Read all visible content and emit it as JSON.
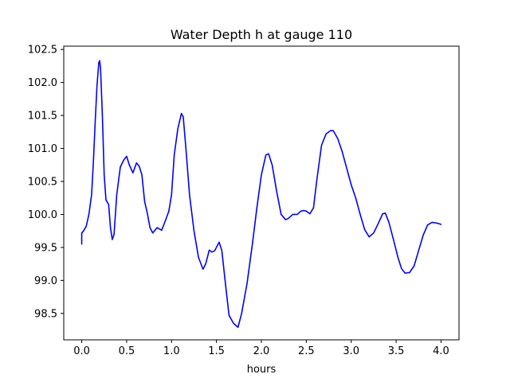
{
  "chart_data": {
    "type": "line",
    "title": "Water Depth h at gauge 110",
    "xlabel": "hours",
    "ylabel": "",
    "xlim": [
      -0.2,
      4.2
    ],
    "ylim": [
      98.1,
      102.55
    ],
    "xticks": [
      0.0,
      0.5,
      1.0,
      1.5,
      2.0,
      2.5,
      3.0,
      3.5,
      4.0
    ],
    "xtick_labels": [
      "0.0",
      "0.5",
      "1.0",
      "1.5",
      "2.0",
      "2.5",
      "3.0",
      "3.5",
      "4.0"
    ],
    "yticks": [
      98.5,
      99.0,
      99.5,
      100.0,
      100.5,
      101.0,
      101.5,
      102.0,
      102.5
    ],
    "ytick_labels": [
      "98.5",
      "99.0",
      "99.5",
      "100.0",
      "100.5",
      "101.0",
      "101.5",
      "102.0",
      "102.5"
    ],
    "grid": false,
    "series": [
      {
        "color": "#0000ff",
        "points": [
          [
            0.0,
            99.55
          ],
          [
            0.0,
            99.72
          ],
          [
            0.02,
            99.75
          ],
          [
            0.05,
            99.82
          ],
          [
            0.08,
            100.0
          ],
          [
            0.11,
            100.3
          ],
          [
            0.13,
            100.8
          ],
          [
            0.15,
            101.4
          ],
          [
            0.17,
            101.95
          ],
          [
            0.19,
            102.3
          ],
          [
            0.2,
            102.33
          ],
          [
            0.21,
            102.2
          ],
          [
            0.23,
            101.5
          ],
          [
            0.25,
            100.6
          ],
          [
            0.27,
            100.22
          ],
          [
            0.3,
            100.15
          ],
          [
            0.32,
            99.8
          ],
          [
            0.34,
            99.62
          ],
          [
            0.36,
            99.7
          ],
          [
            0.39,
            100.3
          ],
          [
            0.43,
            100.72
          ],
          [
            0.47,
            100.83
          ],
          [
            0.5,
            100.88
          ],
          [
            0.53,
            100.75
          ],
          [
            0.57,
            100.63
          ],
          [
            0.61,
            100.78
          ],
          [
            0.64,
            100.73
          ],
          [
            0.67,
            100.6
          ],
          [
            0.7,
            100.2
          ],
          [
            0.73,
            100.02
          ],
          [
            0.76,
            99.8
          ],
          [
            0.79,
            99.72
          ],
          [
            0.84,
            99.8
          ],
          [
            0.89,
            99.76
          ],
          [
            0.93,
            99.9
          ],
          [
            0.97,
            100.05
          ],
          [
            1.0,
            100.3
          ],
          [
            1.03,
            100.9
          ],
          [
            1.07,
            101.3
          ],
          [
            1.11,
            101.53
          ],
          [
            1.13,
            101.48
          ],
          [
            1.16,
            101.0
          ],
          [
            1.2,
            100.3
          ],
          [
            1.25,
            99.75
          ],
          [
            1.3,
            99.35
          ],
          [
            1.35,
            99.17
          ],
          [
            1.38,
            99.25
          ],
          [
            1.42,
            99.46
          ],
          [
            1.45,
            99.43
          ],
          [
            1.48,
            99.45
          ],
          [
            1.53,
            99.58
          ],
          [
            1.56,
            99.45
          ],
          [
            1.6,
            98.95
          ],
          [
            1.64,
            98.47
          ],
          [
            1.69,
            98.35
          ],
          [
            1.74,
            98.29
          ],
          [
            1.78,
            98.5
          ],
          [
            1.84,
            98.95
          ],
          [
            1.9,
            99.55
          ],
          [
            1.95,
            100.1
          ],
          [
            2.0,
            100.6
          ],
          [
            2.05,
            100.9
          ],
          [
            2.08,
            100.92
          ],
          [
            2.12,
            100.75
          ],
          [
            2.17,
            100.35
          ],
          [
            2.22,
            100.0
          ],
          [
            2.27,
            99.92
          ],
          [
            2.3,
            99.94
          ],
          [
            2.35,
            100.0
          ],
          [
            2.4,
            100.0
          ],
          [
            2.44,
            100.05
          ],
          [
            2.47,
            100.06
          ],
          [
            2.5,
            100.05
          ],
          [
            2.54,
            100.01
          ],
          [
            2.58,
            100.1
          ],
          [
            2.62,
            100.55
          ],
          [
            2.67,
            101.05
          ],
          [
            2.72,
            101.22
          ],
          [
            2.77,
            101.27
          ],
          [
            2.8,
            101.27
          ],
          [
            2.85,
            101.15
          ],
          [
            2.9,
            100.95
          ],
          [
            2.95,
            100.7
          ],
          [
            3.0,
            100.45
          ],
          [
            3.05,
            100.25
          ],
          [
            3.1,
            100.0
          ],
          [
            3.15,
            99.77
          ],
          [
            3.2,
            99.66
          ],
          [
            3.25,
            99.72
          ],
          [
            3.3,
            99.86
          ],
          [
            3.35,
            100.01
          ],
          [
            3.38,
            100.02
          ],
          [
            3.42,
            99.88
          ],
          [
            3.47,
            99.62
          ],
          [
            3.52,
            99.35
          ],
          [
            3.56,
            99.18
          ],
          [
            3.6,
            99.11
          ],
          [
            3.65,
            99.12
          ],
          [
            3.7,
            99.22
          ],
          [
            3.75,
            99.45
          ],
          [
            3.8,
            99.68
          ],
          [
            3.85,
            99.84
          ],
          [
            3.9,
            99.88
          ],
          [
            3.95,
            99.87
          ],
          [
            4.0,
            99.85
          ]
        ]
      }
    ]
  }
}
